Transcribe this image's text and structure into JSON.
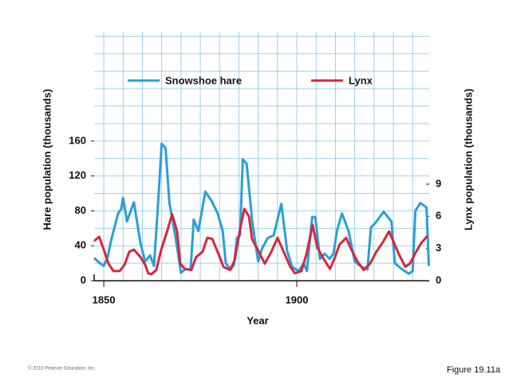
{
  "chart_data": {
    "type": "line",
    "xlabel": "Year",
    "ylabel": "Hare population (thousands)",
    "y2label": "Lynx population (thousands)",
    "xlim": [
      1847.5,
      1934.3
    ],
    "xticks": [
      1850,
      1900
    ],
    "ylim": [
      0,
      285
    ],
    "yticks": [
      0,
      40,
      80,
      120,
      160
    ],
    "y2lim": [
      0,
      23.2
    ],
    "y2ticks": [
      0,
      3,
      6,
      9
    ],
    "grid": true,
    "x_grid_step": 5,
    "y_grid_step": 20,
    "legend": "top",
    "series": [
      {
        "name": "Snowshoe hare",
        "color": "#2a9fd6",
        "x": [
          1847.5,
          1849,
          1850,
          1851,
          1852,
          1853.7,
          1854.5,
          1855,
          1856,
          1857.8,
          1859.5,
          1860.7,
          1862,
          1863,
          1864,
          1865,
          1866,
          1867,
          1868.5,
          1870,
          1871,
          1872.5,
          1873.3,
          1874.5,
          1876.3,
          1878,
          1879.5,
          1880.8,
          1881.6,
          1882.9,
          1883.7,
          1884.5,
          1885.3,
          1886,
          1887,
          1888.5,
          1890,
          1891,
          1892.5,
          1894,
          1896,
          1897.5,
          1898.8,
          1900.4,
          1901.8,
          1902.6,
          1904,
          1904.8,
          1906,
          1907.2,
          1908.5,
          1909.5,
          1910.4,
          1911.7,
          1913.4,
          1915,
          1916.7,
          1918.3,
          1919.2,
          1920.3,
          1922.5,
          1924.5,
          1925.4,
          1927.3,
          1929,
          1930,
          1930.7,
          1932,
          1933.6,
          1934.2
        ],
        "values": [
          26,
          20,
          17,
          27,
          48,
          77,
          82,
          95,
          68,
          90,
          43,
          22,
          29,
          17,
          84,
          157,
          152,
          89,
          52,
          9,
          13,
          13,
          70,
          57,
          102,
          91,
          77,
          57,
          20,
          13,
          18,
          49,
          52,
          139,
          134,
          66,
          22,
          37,
          49,
          52,
          88,
          34,
          16,
          11,
          20,
          11,
          73,
          73,
          25,
          31,
          25,
          31,
          57,
          77,
          57,
          22,
          16,
          13,
          61,
          66,
          79,
          68,
          20,
          13,
          8,
          11,
          80,
          89,
          84,
          17
        ]
      },
      {
        "name": "Lynx",
        "color": "#d7263d",
        "axis": "y2",
        "x": [
          1847.5,
          1848.8,
          1850,
          1851.2,
          1852.5,
          1854.1,
          1855.4,
          1856.6,
          1857.8,
          1859.5,
          1860.7,
          1861.5,
          1862.3,
          1863.6,
          1864.8,
          1866.4,
          1867.7,
          1869,
          1869.8,
          1871,
          1872.7,
          1873.9,
          1875.6,
          1876.8,
          1878.1,
          1879.7,
          1881,
          1882.7,
          1883.9,
          1885.2,
          1886.4,
          1887.6,
          1888.4,
          1890,
          1891.7,
          1893.4,
          1895,
          1896.6,
          1898.3,
          1899.5,
          1901.2,
          1902.5,
          1904.1,
          1905.3,
          1907,
          1908.6,
          1909.9,
          1911.1,
          1912.8,
          1914,
          1915.7,
          1917.3,
          1919,
          1920.6,
          1922.3,
          1923.9,
          1925.2,
          1926.4,
          1928.1,
          1929.3,
          1930.6,
          1932.2,
          1933.9
        ],
        "values": [
          3.7,
          4.1,
          2.9,
          1.6,
          0.9,
          0.9,
          1.5,
          2.7,
          2.9,
          2.2,
          1.5,
          0.7,
          0.6,
          1.0,
          2.8,
          4.6,
          6.2,
          4.6,
          1.6,
          1.1,
          1.0,
          2.2,
          2.7,
          4.0,
          3.9,
          2.5,
          1.3,
          1.0,
          1.9,
          4.6,
          6.7,
          6.0,
          3.9,
          2.8,
          1.6,
          2.7,
          4.0,
          2.7,
          1.3,
          0.7,
          0.9,
          2.5,
          5.2,
          3.1,
          2.0,
          1.1,
          2.2,
          3.4,
          4.0,
          3.0,
          1.8,
          1.0,
          1.6,
          2.7,
          3.6,
          4.6,
          3.5,
          2.5,
          1.3,
          1.6,
          2.5,
          3.5,
          4.2
        ]
      }
    ]
  },
  "footer": {
    "copyright": "© 2010 Pearson Education, Inc.",
    "figure": "Figure 19.11a"
  }
}
